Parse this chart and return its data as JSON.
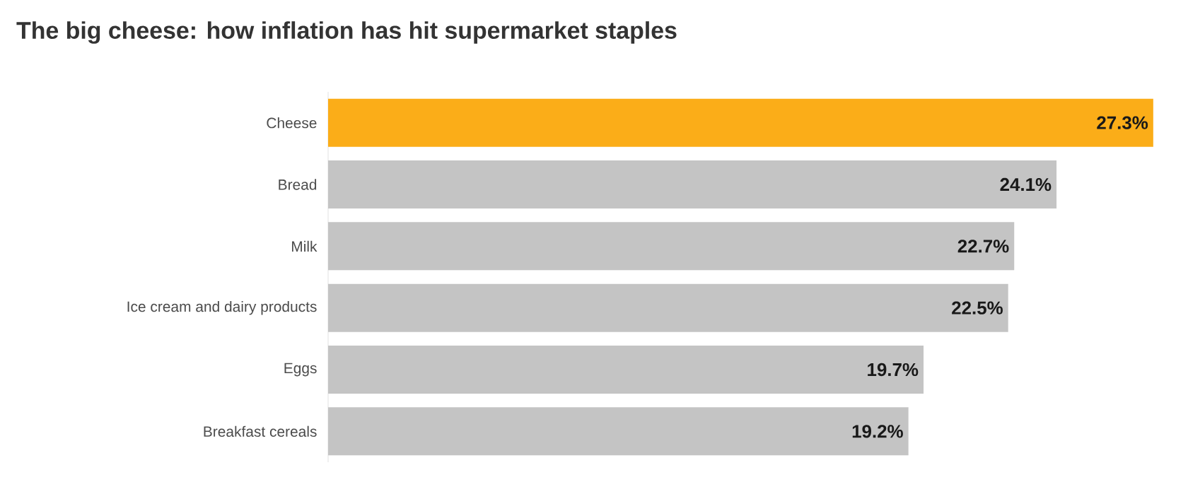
{
  "chart_data": {
    "type": "bar",
    "orientation": "horizontal",
    "title": "The big cheese: how inflation has hit supermarket staples",
    "categories": [
      "Cheese",
      "Bread",
      "Milk",
      "Ice cream and dairy products",
      "Eggs",
      "Breakfast cereals"
    ],
    "values": [
      27.3,
      24.1,
      22.7,
      22.5,
      19.7,
      19.2
    ],
    "value_labels": [
      "27.3%",
      "24.1%",
      "22.7%",
      "22.5%",
      "19.7%",
      "19.2%"
    ],
    "colors": [
      "#fbad18",
      "#c4c4c4",
      "#c4c4c4",
      "#c4c4c4",
      "#c4c4c4",
      "#c4c4c4"
    ]
  }
}
